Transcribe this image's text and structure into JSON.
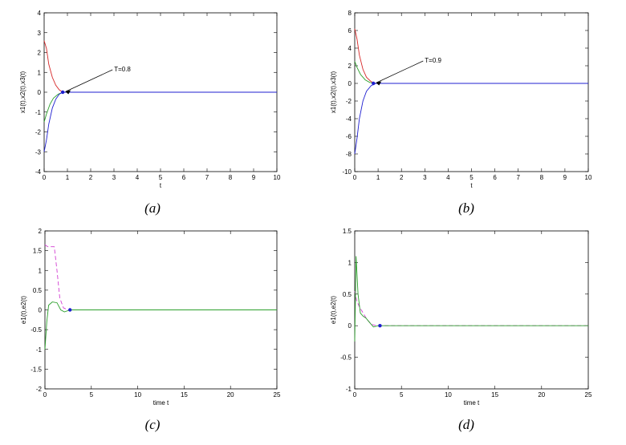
{
  "chart_data": [
    {
      "type": "line",
      "caption": "(a)",
      "xlabel": "t",
      "ylabel": "x1(t),x2(t),x3(t)",
      "xlim": [
        0,
        10
      ],
      "ylim": [
        -4,
        4
      ],
      "xticks": [
        "0",
        "1",
        "2",
        "3",
        "4",
        "5",
        "6",
        "7",
        "8",
        "9",
        "10"
      ],
      "yticks": [
        "-4",
        "-3",
        "-2",
        "-1",
        "0",
        "1",
        "2",
        "3",
        "4"
      ],
      "grid": false,
      "annotations": [
        {
          "text": "T=0.8",
          "x": 0.8,
          "y": 0
        }
      ],
      "series": [
        {
          "color": "#d62728",
          "x": [
            0,
            0.1,
            0.2,
            0.35,
            0.5,
            0.65,
            0.8,
            1.0,
            10
          ],
          "y": [
            2.6,
            2.2,
            1.4,
            0.75,
            0.35,
            0.12,
            0.0,
            0.0,
            0.0
          ]
        },
        {
          "color": "#2ca02c",
          "x": [
            0,
            0.1,
            0.25,
            0.4,
            0.6,
            0.8,
            1.0,
            10
          ],
          "y": [
            -1.5,
            -1.1,
            -0.6,
            -0.3,
            -0.1,
            0.0,
            0.0,
            0.0
          ]
        },
        {
          "color": "#1f1fd0",
          "x": [
            0,
            0.1,
            0.2,
            0.35,
            0.5,
            0.65,
            0.8,
            1.0,
            10
          ],
          "y": [
            -3.0,
            -2.4,
            -1.6,
            -0.8,
            -0.35,
            -0.1,
            0.0,
            0.0,
            0.0
          ]
        }
      ]
    },
    {
      "type": "line",
      "caption": "(b)",
      "xlabel": "t",
      "ylabel": "x1(t),x2(t),x3(t)",
      "xlim": [
        0,
        10
      ],
      "ylim": [
        -10,
        8
      ],
      "xticks": [
        "0",
        "1",
        "2",
        "3",
        "4",
        "5",
        "6",
        "7",
        "8",
        "9",
        "10"
      ],
      "yticks": [
        "-10",
        "-8",
        "-6",
        "-4",
        "-2",
        "0",
        "2",
        "4",
        "6",
        "8"
      ],
      "grid": false,
      "annotations": [
        {
          "text": "T=0.9",
          "x": 0.8,
          "y": 0
        }
      ],
      "series": [
        {
          "color": "#d62728",
          "x": [
            0,
            0.1,
            0.2,
            0.35,
            0.5,
            0.7,
            0.9,
            1.0,
            10
          ],
          "y": [
            6.2,
            5.0,
            3.2,
            1.6,
            0.7,
            0.2,
            0.0,
            0.0,
            0.0
          ]
        },
        {
          "color": "#2ca02c",
          "x": [
            0,
            0.1,
            0.25,
            0.45,
            0.65,
            0.9,
            1.0,
            10
          ],
          "y": [
            2.5,
            1.8,
            1.0,
            0.4,
            0.1,
            0.0,
            0.0,
            0.0
          ]
        },
        {
          "color": "#1f1fd0",
          "x": [
            0,
            0.1,
            0.2,
            0.35,
            0.5,
            0.7,
            0.9,
            1.0,
            10
          ],
          "y": [
            -8.0,
            -6.2,
            -4.0,
            -2.0,
            -0.9,
            -0.25,
            0.0,
            0.0,
            0.0
          ]
        }
      ]
    },
    {
      "type": "line",
      "caption": "(c)",
      "xlabel": "time t",
      "ylabel": "e1(t),e2(t)",
      "xlim": [
        0,
        25
      ],
      "ylim": [
        -2,
        2
      ],
      "xticks": [
        "0",
        "5",
        "10",
        "15",
        "20",
        "25"
      ],
      "yticks": [
        "-2",
        "-1.5",
        "-1",
        "-0.5",
        "0",
        "0.5",
        "1",
        "1.5",
        "2"
      ],
      "grid": false,
      "annotations": [
        {
          "text": "",
          "x": 2.7,
          "y": 0
        }
      ],
      "series": [
        {
          "color": "#d23fd2",
          "dashed": true,
          "x": [
            0,
            0.3,
            1.0,
            1.3,
            1.6,
            2.0,
            2.5,
            3.0,
            25
          ],
          "y": [
            1.65,
            1.6,
            1.6,
            1.0,
            0.3,
            0.05,
            0.0,
            0.0,
            0.0
          ]
        },
        {
          "color": "#2ca02c",
          "x": [
            0,
            0.2,
            0.4,
            0.8,
            1.3,
            1.7,
            2.1,
            2.7,
            25
          ],
          "y": [
            -1.0,
            -0.3,
            0.12,
            0.2,
            0.18,
            0.0,
            -0.05,
            0.0,
            0.0
          ]
        }
      ]
    },
    {
      "type": "line",
      "caption": "(d)",
      "xlabel": "time t",
      "ylabel": "e1(t),e2(t)",
      "xlim": [
        0,
        25
      ],
      "ylim": [
        -1,
        1.5
      ],
      "xticks": [
        "0",
        "5",
        "10",
        "15",
        "20",
        "25"
      ],
      "yticks": [
        "-1",
        "-0.5",
        "0",
        "0.5",
        "1",
        "1.5"
      ],
      "grid": false,
      "annotations": [
        {
          "text": "",
          "x": 2.7,
          "y": 0
        }
      ],
      "series": [
        {
          "color": "#d23fd2",
          "dashed": true,
          "x": [
            0,
            0.2,
            0.5,
            0.9,
            1.3,
            1.8,
            2.3,
            3.0,
            25
          ],
          "y": [
            0.55,
            0.4,
            0.3,
            0.2,
            0.1,
            0.02,
            0.0,
            0.0,
            0.0
          ]
        },
        {
          "color": "#2ca02c",
          "x": [
            0,
            0.15,
            0.35,
            0.6,
            0.9,
            1.2,
            1.6,
            2.0,
            2.5,
            3.0,
            25
          ],
          "y": [
            -0.25,
            1.1,
            0.5,
            0.2,
            0.15,
            0.12,
            0.05,
            -0.02,
            0.0,
            0.0,
            0.0
          ]
        }
      ]
    }
  ]
}
